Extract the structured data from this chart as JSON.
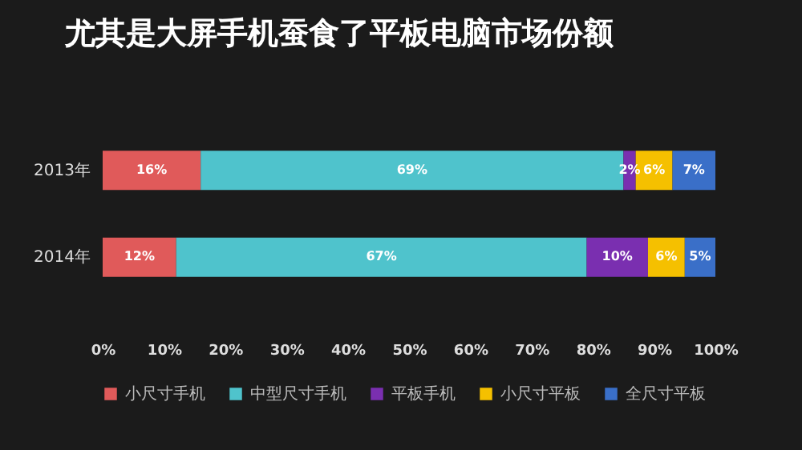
{
  "chart_data": {
    "type": "bar",
    "title": "尤其是大屏手机蚕食了平板电脑市场份额",
    "orientation": "horizontal",
    "stacked": true,
    "categories": [
      "2013年",
      "2014年"
    ],
    "series": [
      {
        "name": "小尺寸手机",
        "color": "#e05a5a",
        "values": [
          16,
          12
        ],
        "value_labels": [
          "16%",
          "12%"
        ]
      },
      {
        "name": "中型尺寸手机",
        "color": "#4fc3cc",
        "values": [
          69,
          67
        ],
        "value_labels": [
          "69%",
          "67%"
        ]
      },
      {
        "name": "平板手机",
        "color": "#7a2fb0",
        "values": [
          2,
          10
        ],
        "value_labels": [
          "2%",
          "10%"
        ]
      },
      {
        "name": "小尺寸平板",
        "color": "#f5c000",
        "values": [
          6,
          6
        ],
        "value_labels": [
          "6%",
          "6%"
        ]
      },
      {
        "name": "全尺寸平板",
        "color": "#3a6fc8",
        "values": [
          7,
          5
        ],
        "value_labels": [
          "7%",
          "5%"
        ]
      }
    ],
    "xlim": [
      0,
      100
    ],
    "xticks": [
      {
        "value": 0,
        "label": "0%"
      },
      {
        "value": 10,
        "label": "10%"
      },
      {
        "value": 20,
        "label": "20%"
      },
      {
        "value": 30,
        "label": "30%"
      },
      {
        "value": 40,
        "label": "40%"
      },
      {
        "value": 50,
        "label": "50%"
      },
      {
        "value": 60,
        "label": "60%"
      },
      {
        "value": 70,
        "label": "70%"
      },
      {
        "value": 80,
        "label": "80%"
      },
      {
        "value": 90,
        "label": "90%"
      },
      {
        "value": 100,
        "label": "100%"
      }
    ],
    "grid": false,
    "legend": "bottom"
  }
}
